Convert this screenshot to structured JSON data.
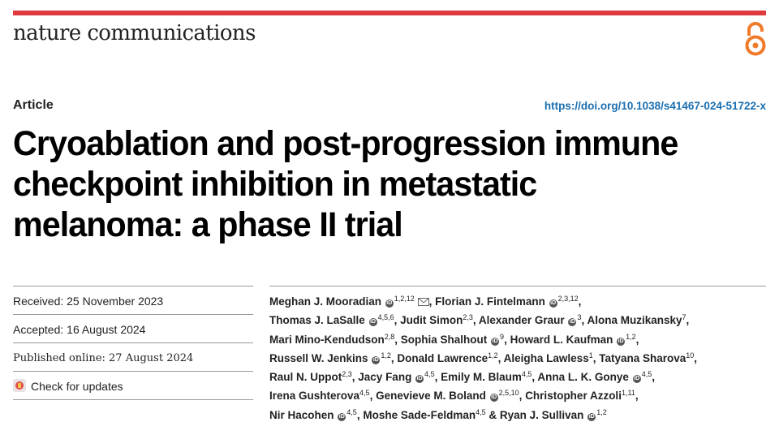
{
  "journal": "nature communications",
  "article_type": "Article",
  "doi": "https://doi.org/10.1038/s41467-024-51722-x",
  "title_lines": [
    "Cryoablation and post-progression immune",
    "checkpoint inhibition in metastatic",
    "melanoma: a phase II trial"
  ],
  "meta": {
    "received": "Received: 25 November 2023",
    "accepted": "Accepted: 16 August 2024",
    "published": "Published online: 27 August 2024",
    "check_updates": "Check for updates"
  },
  "authors": {
    "a1": "Meghan J. Mooradian",
    "a1s": "1,2,12",
    "a2": "Florian J. Fintelmann",
    "a2s": "2,3,12",
    "a3": "Thomas J. LaSalle",
    "a3s": "4,5,6",
    "a4": "Judit Simon",
    "a4s": "2,3",
    "a5": "Alexander Graur",
    "a5s": "3",
    "a6": "Alona Muzikansky",
    "a6s": "7",
    "a7": "Mari Mino-Kendudson",
    "a7s": "2,8",
    "a8": "Sophia Shalhout",
    "a8s": "9",
    "a9": "Howard L. Kaufman",
    "a9s": "1,2",
    "a10": "Russell W. Jenkins",
    "a10s": "1,2",
    "a11": "Donald Lawrence",
    "a11s": "1,2",
    "a12": "Aleigha Lawless",
    "a12s": "1",
    "a13": "Tatyana Sharova",
    "a13s": "10",
    "a14": "Raul N. Uppot",
    "a14s": "2,3",
    "a15": "Jacy Fang",
    "a15s": "4,5",
    "a16": "Emily M. Blaum",
    "a16s": "4,5",
    "a17": "Anna L. K. Gonye",
    "a17s": "4,5",
    "a18": "Irena Gushterova",
    "a18s": "4,5",
    "a19": "Genevieve M. Boland",
    "a19s": "2,5,10",
    "a20": "Christopher Azzoli",
    "a20s": "1,11",
    "a21": "Nir Hacohen",
    "a21s": "4,5",
    "a22": "Moshe Sade-Feldman",
    "a22s": "4,5",
    "a23": "Ryan J. Sullivan",
    "a23s": "1,2"
  },
  "colors": {
    "accent_bar": "#e0393e",
    "oa_icon": "#f07b2a",
    "doi_link": "#1a6fb0"
  },
  "icons": [
    "open-access-icon",
    "orcid-icon",
    "email-icon",
    "check-for-updates-icon"
  ]
}
